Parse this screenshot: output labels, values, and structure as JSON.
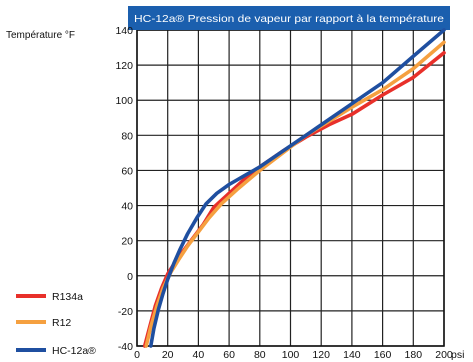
{
  "chart_data": {
    "type": "line",
    "title": "HC-12a® Pression de vapeur par rapport à la température",
    "ylabel": "Température °F",
    "xlabel": "",
    "x_unit": "psi",
    "xlim": [
      0,
      200
    ],
    "ylim": [
      -40,
      140
    ],
    "x_ticks": [
      "0",
      "20",
      "40",
      "60",
      "80",
      "100",
      "120",
      "140",
      "160",
      "180",
      "200"
    ],
    "y_ticks": [
      "-40",
      "-20",
      "0",
      "20",
      "40",
      "60",
      "80",
      "100",
      "120",
      "140"
    ],
    "grid": true,
    "legend_position": "bottom-left",
    "series": [
      {
        "name": "R134a",
        "color": "#e8302a",
        "x": [
          5,
          8,
          12,
          16,
          20,
          25,
          30,
          36,
          43,
          50,
          60,
          70,
          80,
          95,
          110,
          125,
          140,
          160,
          180,
          200
        ],
        "y": [
          -40,
          -30,
          -17,
          -7,
          1,
          8,
          14,
          21,
          29,
          39,
          47,
          55,
          62,
          71,
          79,
          86,
          92,
          103,
          113,
          127
        ]
      },
      {
        "name": "R12",
        "color": "#f5a040",
        "x": [
          6,
          9,
          13,
          17,
          22,
          27,
          33,
          40,
          47,
          55,
          65,
          80,
          95,
          110,
          125,
          140,
          160,
          180,
          200
        ],
        "y": [
          -40,
          -29,
          -17,
          -7,
          2,
          9,
          17,
          25,
          33,
          41,
          49,
          60,
          70,
          80,
          88,
          96,
          106,
          118,
          133
        ]
      },
      {
        "name": "HC-12a®",
        "color": "#1f4fa0",
        "x": [
          9,
          11,
          14,
          17,
          20,
          24,
          28,
          33,
          39,
          45,
          52,
          60,
          70,
          80,
          95,
          110,
          125,
          140,
          160,
          180,
          200
        ],
        "y": [
          -40,
          -30,
          -19,
          -10,
          -2,
          7,
          15,
          24,
          33,
          41,
          47,
          52,
          57,
          62,
          71,
          80,
          89,
          98,
          110,
          125,
          140
        ]
      }
    ]
  }
}
